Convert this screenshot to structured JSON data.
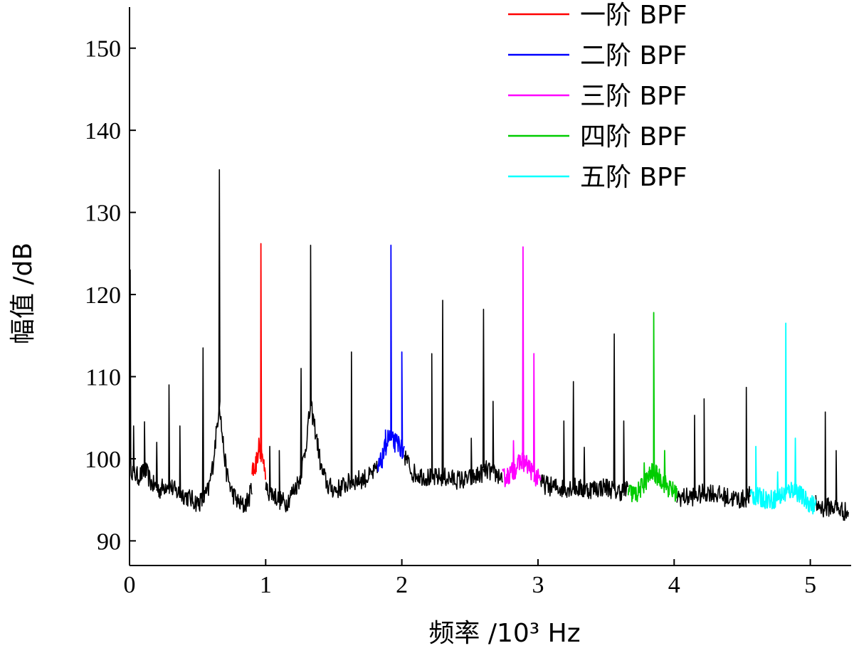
{
  "chart_data": {
    "type": "line",
    "title": "",
    "xlabel": "频率 /10³ Hz",
    "ylabel": "幅值 /dB",
    "xlim": [
      0,
      5.3
    ],
    "ylim": [
      87,
      155
    ],
    "x_ticks": [
      0,
      1,
      2,
      3,
      4,
      5
    ],
    "y_ticks": [
      90,
      100,
      110,
      120,
      130,
      140,
      150
    ],
    "grid": false,
    "legend_position": "top-right",
    "baseline": {
      "color": "#000000",
      "points": [
        [
          0,
          100
        ],
        [
          0.02,
          98.5
        ],
        [
          0.06,
          97.8
        ],
        [
          0.12,
          98.5
        ],
        [
          0.16,
          97.0
        ],
        [
          0.22,
          96.2
        ],
        [
          0.28,
          97.0
        ],
        [
          0.34,
          96.0
        ],
        [
          0.4,
          95.6
        ],
        [
          0.46,
          95.0
        ],
        [
          0.5,
          94.6
        ],
        [
          0.54,
          95.0
        ],
        [
          0.58,
          96.2
        ],
        [
          0.61,
          99.0
        ],
        [
          0.64,
          103.5
        ],
        [
          0.66,
          107.0
        ],
        [
          0.68,
          103.0
        ],
        [
          0.71,
          98.5
        ],
        [
          0.75,
          96.0
        ],
        [
          0.8,
          94.6
        ],
        [
          0.84,
          94.2
        ],
        [
          0.88,
          95.3
        ],
        [
          0.92,
          98.4
        ],
        [
          1.0,
          96.2
        ],
        [
          1.05,
          95.8
        ],
        [
          1.1,
          95.0
        ],
        [
          1.15,
          94.6
        ],
        [
          1.2,
          96.0
        ],
        [
          1.25,
          97.5
        ],
        [
          1.29,
          101.0
        ],
        [
          1.33,
          106.5
        ],
        [
          1.37,
          103.0
        ],
        [
          1.41,
          98.6
        ],
        [
          1.46,
          96.6
        ],
        [
          1.52,
          96.2
        ],
        [
          1.58,
          96.8
        ],
        [
          1.64,
          97.3
        ],
        [
          1.7,
          97.5
        ],
        [
          1.76,
          97.8
        ],
        [
          1.82,
          98.6
        ],
        [
          2.02,
          100.4
        ],
        [
          2.08,
          98.3
        ],
        [
          2.14,
          98.0
        ],
        [
          2.22,
          97.6
        ],
        [
          2.3,
          97.8
        ],
        [
          2.38,
          97.5
        ],
        [
          2.46,
          97.4
        ],
        [
          2.54,
          97.8
        ],
        [
          2.62,
          98.6
        ],
        [
          2.68,
          98.2
        ],
        [
          2.74,
          97.8
        ],
        [
          3.02,
          97.0
        ],
        [
          3.1,
          96.6
        ],
        [
          3.18,
          96.4
        ],
        [
          3.26,
          96.6
        ],
        [
          3.34,
          96.2
        ],
        [
          3.42,
          96.4
        ],
        [
          3.5,
          96.6
        ],
        [
          3.58,
          96.0
        ],
        [
          3.66,
          96.2
        ],
        [
          4.02,
          95.4
        ],
        [
          4.1,
          95.3
        ],
        [
          4.18,
          95.6
        ],
        [
          4.26,
          96.0
        ],
        [
          4.34,
          95.5
        ],
        [
          4.42,
          95.2
        ],
        [
          4.5,
          95.0
        ],
        [
          4.56,
          95.6
        ],
        [
          5.04,
          94.4
        ],
        [
          5.1,
          94.0
        ],
        [
          5.16,
          94.2
        ],
        [
          5.22,
          93.8
        ],
        [
          5.28,
          93.4
        ]
      ],
      "peaks": [
        [
          0.005,
          123.0
        ],
        [
          0.03,
          104.0
        ],
        [
          0.11,
          104.5
        ],
        [
          0.2,
          102.0
        ],
        [
          0.29,
          109.0
        ],
        [
          0.37,
          104.0
        ],
        [
          0.54,
          113.5
        ],
        [
          0.66,
          135.2
        ],
        [
          1.03,
          101.5
        ],
        [
          1.1,
          101.0
        ],
        [
          1.26,
          111.0
        ],
        [
          1.33,
          126.0
        ],
        [
          1.63,
          113.0
        ],
        [
          2.22,
          112.8
        ],
        [
          2.3,
          119.3
        ],
        [
          2.51,
          102.5
        ],
        [
          2.6,
          118.2
        ],
        [
          2.67,
          107.0
        ],
        [
          3.19,
          104.6
        ],
        [
          3.26,
          109.4
        ],
        [
          3.34,
          101.4
        ],
        [
          3.56,
          115.2
        ],
        [
          3.63,
          104.6
        ],
        [
          4.15,
          105.3
        ],
        [
          4.22,
          107.3
        ],
        [
          4.53,
          108.7
        ],
        [
          5.11,
          105.7
        ],
        [
          5.19,
          101.0
        ]
      ]
    },
    "series": [
      {
        "name": "一阶 BPF",
        "color": "#ff0000",
        "x_range": [
          0.9,
          1.0
        ],
        "base": [
          98.5,
          99.0,
          101.5,
          100.5,
          97.0
        ],
        "peaks": [
          [
            0.965,
            126.2
          ],
          [
            0.95,
            102.5
          ]
        ]
      },
      {
        "name": "二阶 BPF",
        "color": "#0000ff",
        "x_range": [
          1.82,
          2.02
        ],
        "base": [
          98.5,
          100.2,
          102.6,
          102.0,
          101.8,
          100.5
        ],
        "peaks": [
          [
            1.92,
            126.0
          ],
          [
            2.0,
            113.0
          ],
          [
            1.88,
            103.5
          ]
        ]
      },
      {
        "name": "三阶 BPF",
        "color": "#ff00ff",
        "x_range": [
          2.74,
          3.02
        ],
        "base": [
          97.6,
          98.0,
          98.8,
          99.8,
          99.2,
          98.0,
          97.2
        ],
        "peaks": [
          [
            2.89,
            125.8
          ],
          [
            2.97,
            112.8
          ],
          [
            2.82,
            102.2
          ],
          [
            2.78,
            98.6
          ]
        ]
      },
      {
        "name": "四阶 BPF",
        "color": "#00cc00",
        "x_range": [
          3.66,
          4.02
        ],
        "base": [
          96.0,
          95.6,
          97.0,
          98.4,
          97.6,
          96.4,
          95.8
        ],
        "peaks": [
          [
            3.85,
            117.8
          ],
          [
            3.93,
            101.0
          ],
          [
            3.78,
            99.5
          ]
        ]
      },
      {
        "name": "五阶 BPF",
        "color": "#00ffff",
        "x_range": [
          4.56,
          5.04
        ],
        "base": [
          95.6,
          95.2,
          95.0,
          95.6,
          96.4,
          95.0,
          94.2
        ],
        "peaks": [
          [
            4.82,
            116.5
          ],
          [
            4.89,
            102.5
          ],
          [
            4.6,
            101.5
          ],
          [
            4.76,
            98.4
          ]
        ]
      }
    ]
  }
}
